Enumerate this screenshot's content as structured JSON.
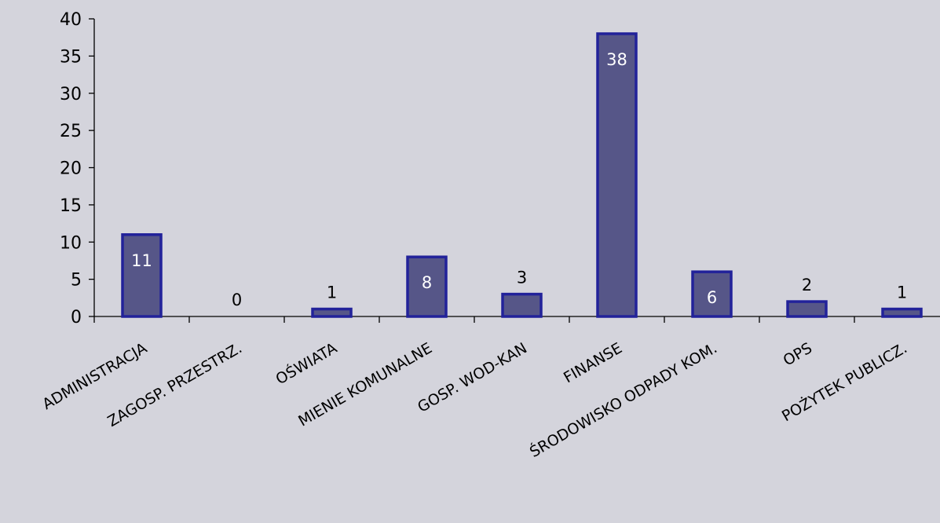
{
  "chart_data": {
    "type": "bar",
    "categories": [
      "ADMINISTRACJA",
      "ZAGOSP. PRZESTRZ.",
      "OŚWIATA",
      "MIENIE KOMUNALNE",
      "GOSP. WOD-KAN",
      "FINANSE",
      "ŚRODOWISKO ODPADY KOM.",
      "OPS",
      "POŻYTEK PUBLICZ."
    ],
    "values": [
      11,
      0,
      1,
      8,
      3,
      38,
      6,
      2,
      1
    ],
    "ylim": [
      0,
      40
    ],
    "yticks": [
      0,
      5,
      10,
      15,
      20,
      25,
      30,
      35,
      40
    ],
    "grid": false,
    "legend": "none",
    "colors": {
      "background": "#d4d4dc",
      "bar_fill": "#565688",
      "bar_stroke": "#22229a",
      "label_inside": "#ffffff",
      "label_outside": "#000000"
    }
  }
}
